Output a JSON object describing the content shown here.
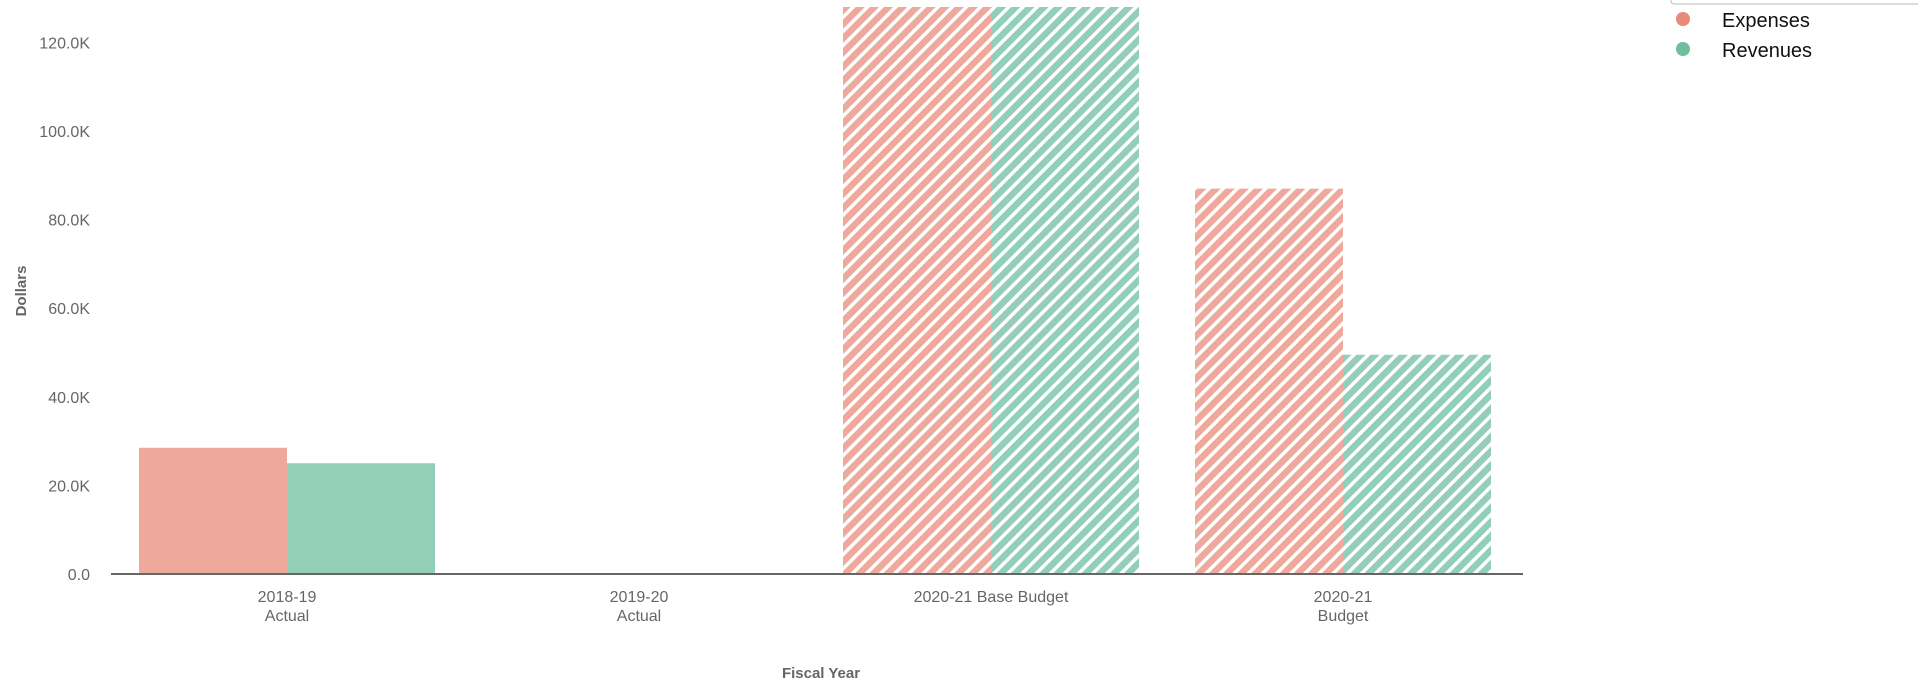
{
  "chart_data": {
    "type": "bar",
    "categories": [
      [
        "2018-19",
        "Actual"
      ],
      [
        "2019-20",
        "Actual"
      ],
      [
        "2020-21 Base Budget"
      ],
      [
        "2020-21",
        "Budget"
      ]
    ],
    "hatched_categories": [
      false,
      false,
      true,
      true
    ],
    "series": [
      {
        "name": "Expenses",
        "color": "#eea99c",
        "legend_color": "#e8897a",
        "values": [
          28500,
          0,
          128000,
          87000
        ]
      },
      {
        "name": "Revenues",
        "color": "#93ceb9",
        "legend_color": "#6fbf9f",
        "values": [
          25000,
          0,
          128000,
          49500
        ]
      }
    ],
    "xlabel": "Fiscal Year",
    "ylabel": "Dollars",
    "ylim": [
      0,
      128000
    ],
    "yticks": [
      {
        "value": 0,
        "label": "0.0"
      },
      {
        "value": 20000,
        "label": "20.0K"
      },
      {
        "value": 40000,
        "label": "40.0K"
      },
      {
        "value": 60000,
        "label": "60.0K"
      },
      {
        "value": 80000,
        "label": "80.0K"
      },
      {
        "value": 100000,
        "label": "100.0K"
      },
      {
        "value": 120000,
        "label": "120.0K"
      }
    ],
    "grid": false,
    "legend_position": "top-right"
  }
}
